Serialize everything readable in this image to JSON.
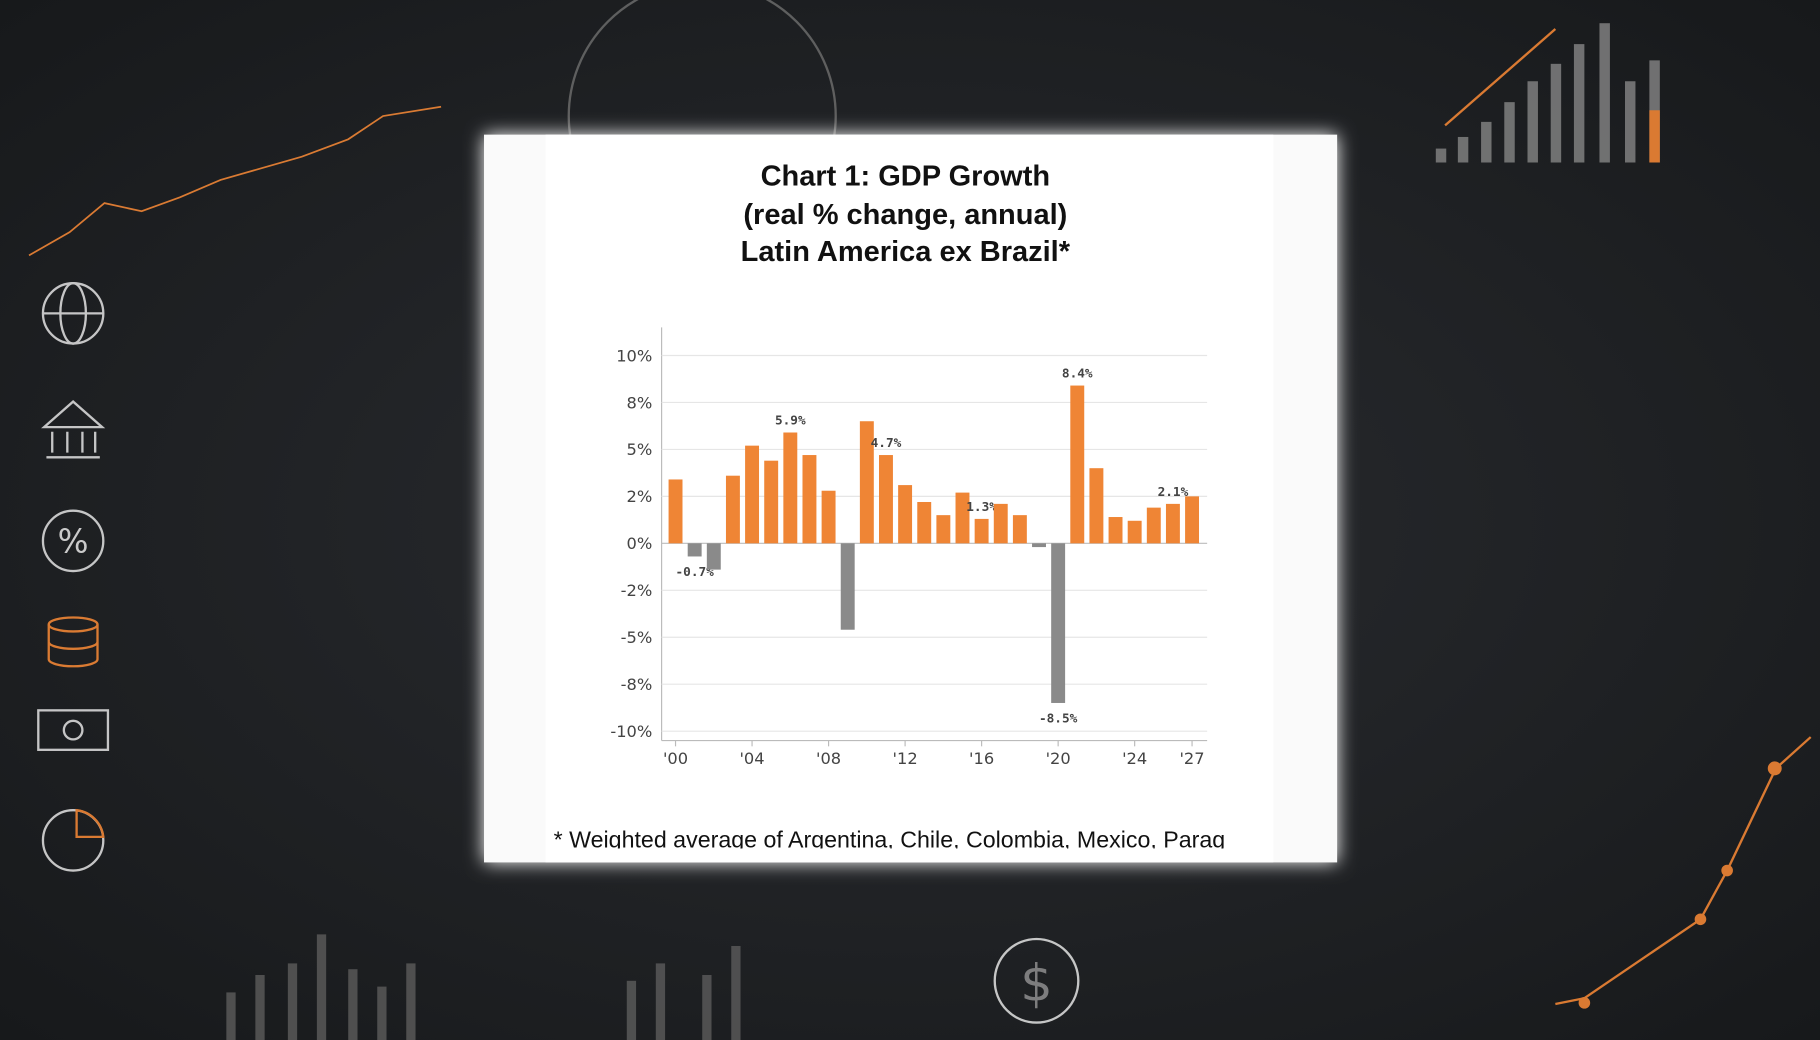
{
  "chart_data": {
    "type": "bar",
    "title_lines": [
      "Chart 1: GDP Growth",
      "(real % change, annual)",
      "Latin America ex Brazil*"
    ],
    "footnote": "* Weighted average of Argentina, Chile, Colombia, Mexico, Parag",
    "categories": [
      "'00",
      null,
      null,
      null,
      "'04",
      null,
      null,
      null,
      "'08",
      null,
      null,
      null,
      "'12",
      null,
      null,
      null,
      "'16",
      null,
      null,
      null,
      "'20",
      null,
      null,
      null,
      "'24",
      null,
      null,
      "'27"
    ],
    "values": [
      3.4,
      -0.7,
      -1.4,
      3.6,
      5.2,
      4.4,
      5.9,
      4.7,
      2.8,
      -4.6,
      6.5,
      4.7,
      3.1,
      2.2,
      1.5,
      2.7,
      1.3,
      2.1,
      1.5,
      -0.2,
      -8.5,
      8.4,
      4.0,
      1.4,
      1.2,
      1.9,
      2.1,
      2.5
    ],
    "value_labels": [
      null,
      "-0.7%",
      null,
      null,
      null,
      null,
      "5.9%",
      null,
      null,
      null,
      null,
      "4.7%",
      null,
      null,
      null,
      null,
      "1.3%",
      null,
      null,
      null,
      "-8.5%",
      "8.4%",
      null,
      null,
      null,
      null,
      "2.1%",
      null
    ],
    "color": "#ef8535",
    "negative_color": "#8a8a8a",
    "ylim": [
      -10.5,
      11.5
    ],
    "yticks": [
      {
        "value": -10,
        "label": "-10%"
      },
      {
        "value": -7.5,
        "label": "-8%"
      },
      {
        "value": -5,
        "label": "-5%"
      },
      {
        "value": -2.5,
        "label": "-2%"
      },
      {
        "value": 0,
        "label": "0%"
      },
      {
        "value": 2.5,
        "label": "2%"
      },
      {
        "value": 5,
        "label": "5%"
      },
      {
        "value": 7.5,
        "label": "8%"
      },
      {
        "value": 10,
        "label": "10%"
      }
    ],
    "grid": true
  }
}
